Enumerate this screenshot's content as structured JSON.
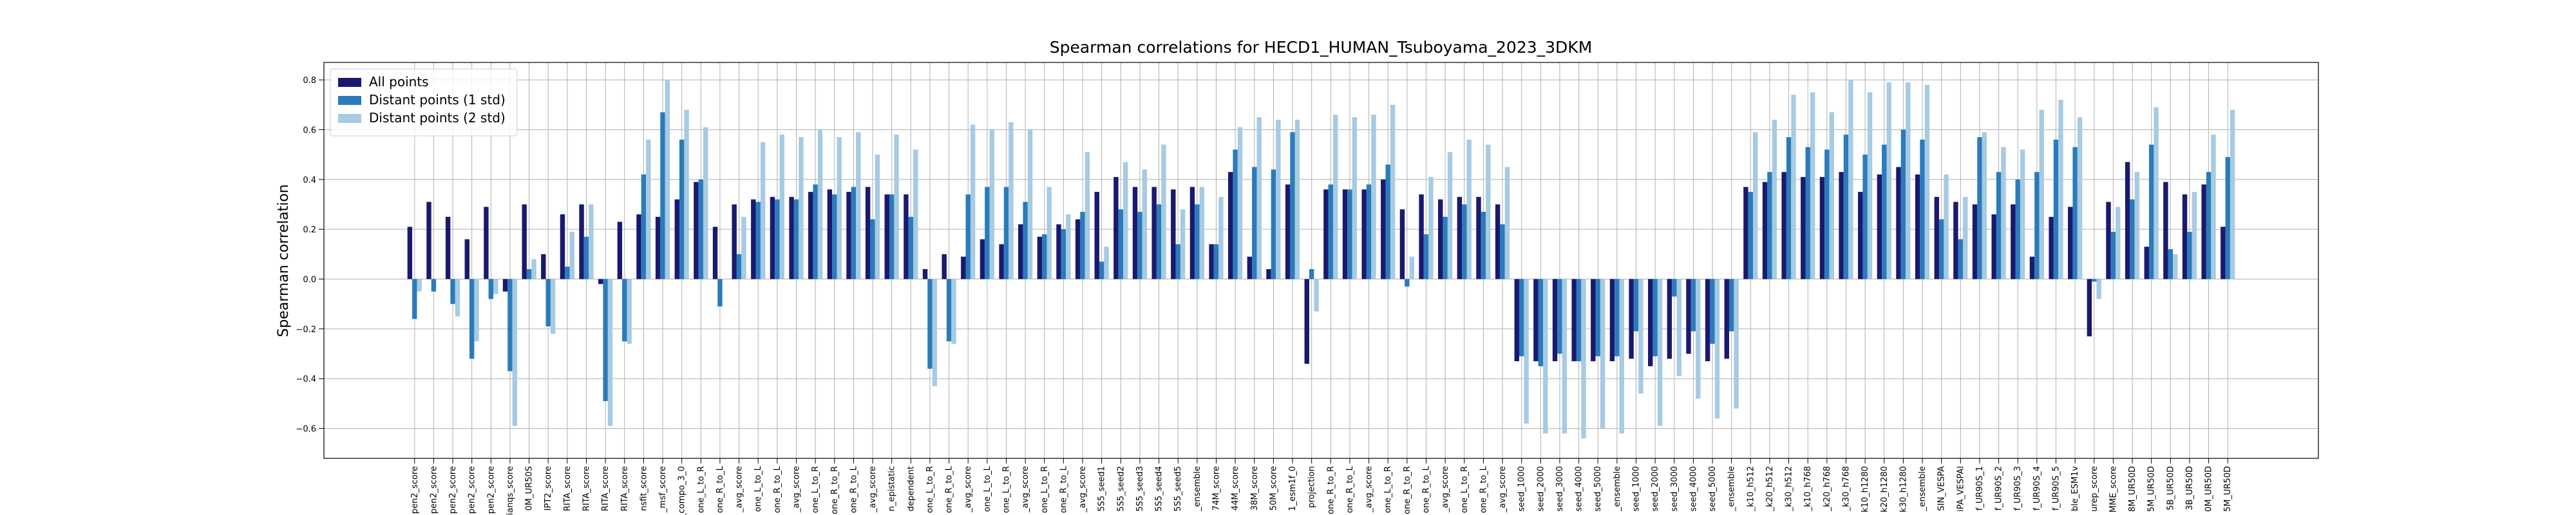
{
  "chart_data": {
    "type": "bar",
    "title": "Spearman correlations for HECD1_HUMAN_Tsuboyama_2023_3DKM",
    "ylabel": "Spearman correlation",
    "categories": [
      "pen2_score",
      "pen2_score",
      "pen2_score",
      "pen2_score",
      "pen2_score",
      "ianqs_score",
      "0M_UR50S",
      "IPT2_score",
      "RITA_score",
      "RITA_score",
      "RITA_score",
      "RITA_score",
      "nsfit_score",
      "_msf_score",
      "f_compo_3_0",
      "one_L_to_R",
      "one_R_to_L",
      "_avg_score",
      "one_L_to_L",
      "one_R_to_L",
      "_avg_score",
      "one_L_to_R",
      "one_R_to_R",
      "one_R_to_L",
      "_avg_score",
      "n_epistatic",
      "dependent",
      "one_L_to_R",
      "one_R_to_L",
      "_avg_score",
      "one_L_to_L",
      "one_L_to_R",
      "_avg_score",
      "one_L_to_R",
      "one_R_to_L",
      "_avg_score",
      "5S5_seed1",
      "5S5_seed2",
      "5S5_seed3",
      "5S5_seed4",
      "5S5_seed5",
      "_ensemble",
      "74M_score",
      "44M_score",
      "38M_score",
      "50M_score",
      "1_esm1f_0",
      "projection",
      "one_R_to_R",
      "one_R_to_L",
      "_avg_score",
      "one_L_to_R",
      "one_R_to_R",
      "one_R_to_L",
      "_avg_score",
      "one_L_to_R",
      "one_R_to_L",
      "_avg_score",
      "seed_1000",
      "seed_2000",
      "seed_3000",
      "seed_4000",
      "seed_5000",
      "_ensemble",
      "seed_1000",
      "seed_2000",
      "seed_3000",
      "seed_4000",
      "seed_5000",
      "_ensemble",
      "_k10_h512",
      "_k20_h512",
      "_k30_h512",
      "_k10_h768",
      "_k20_h768",
      "_k30_h768",
      "k10_h1280",
      "k20_h1280",
      "k30_h1280",
      "_ensemble",
      "SIN_VESPA",
      "iPA_VESPAl",
      "f_UR90S_1",
      "f_UR90S_2",
      "f_UR90S_3",
      "f_UR90S_4",
      "f_UR90S_5",
      "ble_ESM1v",
      "urep_score",
      "MME_score",
      "8M_UR50D",
      "5M_UR50D",
      "5B_UR50D",
      "3B_UR50D",
      "0M_UR50D",
      "5M_UR50D"
    ],
    "series": [
      {
        "name": "All points",
        "color": "#191970",
        "values": [
          0.21,
          0.31,
          0.25,
          0.16,
          0.29,
          -0.05,
          0.3,
          0.1,
          0.26,
          0.3,
          -0.02,
          0.23,
          0.26,
          0.25,
          0.32,
          0.39,
          0.21,
          0.3,
          0.32,
          0.33,
          0.33,
          0.35,
          0.36,
          0.35,
          0.37,
          0.34,
          0.34,
          0.04,
          0.1,
          0.09,
          0.16,
          0.14,
          0.22,
          0.17,
          0.22,
          0.24,
          0.35,
          0.41,
          0.37,
          0.37,
          0.36,
          0.37,
          0.14,
          0.43,
          0.09,
          0.04,
          0.38,
          -0.34,
          0.36,
          0.36,
          0.36,
          0.4,
          0.28,
          0.34,
          0.32,
          0.33,
          0.33,
          0.3,
          -0.33,
          -0.33,
          -0.33,
          -0.33,
          -0.33,
          -0.33,
          -0.32,
          -0.35,
          -0.32,
          -0.3,
          -0.33,
          -0.32,
          0.37,
          0.39,
          0.43,
          0.41,
          0.41,
          0.43,
          0.35,
          0.42,
          0.45,
          0.42,
          0.33,
          0.31,
          0.3,
          0.26,
          0.3,
          0.09,
          0.25,
          0.29,
          -0.23,
          0.31,
          0.47,
          0.13,
          0.39,
          0.34,
          0.38,
          0.21
        ]
      },
      {
        "name": "Distant points (1 std)",
        "color": "#2b7bba",
        "values": [
          -0.16,
          -0.05,
          -0.1,
          -0.32,
          -0.08,
          -0.37,
          0.04,
          -0.19,
          0.05,
          0.17,
          -0.49,
          -0.25,
          0.42,
          0.67,
          0.56,
          0.4,
          -0.11,
          0.1,
          0.31,
          0.32,
          0.32,
          0.38,
          0.34,
          0.37,
          0.24,
          0.34,
          0.25,
          -0.36,
          -0.25,
          0.34,
          0.37,
          0.37,
          0.31,
          0.18,
          0.2,
          0.27,
          0.07,
          0.28,
          0.27,
          0.3,
          0.14,
          0.3,
          0.14,
          0.52,
          0.45,
          0.44,
          0.59,
          0.04,
          0.38,
          0.36,
          0.38,
          0.46,
          -0.03,
          0.18,
          0.25,
          0.3,
          0.27,
          0.22,
          -0.31,
          -0.35,
          -0.3,
          -0.33,
          -0.31,
          -0.31,
          -0.21,
          -0.31,
          -0.07,
          -0.21,
          -0.26,
          -0.21,
          0.35,
          0.43,
          0.57,
          0.53,
          0.52,
          0.58,
          0.5,
          0.54,
          0.6,
          0.56,
          0.24,
          0.16,
          0.57,
          0.43,
          0.4,
          0.43,
          0.56,
          0.53,
          -0.01,
          0.19,
          0.32,
          0.54,
          0.12,
          0.19,
          0.43,
          0.49
        ]
      },
      {
        "name": "Distant points (2 std)",
        "color": "#a6cbe3",
        "values": [
          -0.05,
          0.0,
          -0.15,
          -0.25,
          -0.06,
          -0.59,
          0.08,
          -0.22,
          0.19,
          0.3,
          -0.59,
          -0.26,
          0.56,
          0.8,
          0.68,
          0.61,
          0.0,
          0.25,
          0.55,
          0.58,
          0.57,
          0.6,
          0.57,
          0.59,
          0.5,
          0.58,
          0.52,
          -0.43,
          -0.26,
          0.62,
          0.6,
          0.63,
          0.6,
          0.37,
          0.26,
          0.51,
          0.13,
          0.47,
          0.44,
          0.54,
          0.28,
          0.37,
          0.33,
          0.61,
          0.65,
          0.64,
          0.64,
          -0.13,
          0.66,
          0.65,
          0.66,
          0.7,
          0.09,
          0.41,
          0.51,
          0.56,
          0.54,
          0.45,
          -0.58,
          -0.62,
          -0.62,
          -0.64,
          -0.6,
          -0.62,
          -0.46,
          -0.59,
          -0.39,
          -0.48,
          -0.56,
          -0.52,
          0.59,
          0.64,
          0.74,
          0.75,
          0.67,
          0.8,
          0.75,
          0.79,
          0.79,
          0.78,
          0.42,
          0.33,
          0.59,
          0.53,
          0.52,
          0.68,
          0.72,
          0.65,
          -0.08,
          0.29,
          0.43,
          0.69,
          0.1,
          0.35,
          0.58,
          0.68
        ]
      }
    ],
    "ylim": [
      -0.72,
      0.87
    ],
    "yticks": [
      {
        "value": -0.6,
        "label": "−0.6"
      },
      {
        "value": -0.4,
        "label": "−0.4"
      },
      {
        "value": -0.2,
        "label": "−0.2"
      },
      {
        "value": 0,
        "label": "0.0"
      },
      0.2,
      0.4,
      0.6,
      0.8
    ],
    "grid": true,
    "legend": "upper-left"
  }
}
